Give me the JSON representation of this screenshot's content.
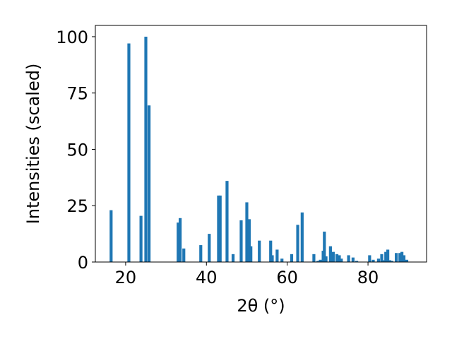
{
  "chart_data": {
    "type": "bar",
    "xlabel": "2θ (°)",
    "ylabel": "Intensities (scaled)",
    "xlim": [
      12.5,
      94.5
    ],
    "ylim": [
      0,
      105
    ],
    "grid": false,
    "bar_color": "#1f77b4",
    "x_ticks": [
      "20",
      "40",
      "60",
      "80"
    ],
    "y_ticks": [
      "0",
      "25",
      "50",
      "75",
      "100"
    ],
    "x": [
      16.4,
      20.8,
      23.8,
      25.0,
      25.8,
      33.0,
      33.5,
      34.4,
      38.6,
      40.7,
      43.0,
      43.4,
      45.1,
      46.6,
      48.6,
      50.0,
      50.6,
      51.0,
      53.1,
      55.9,
      56.3,
      57.5,
      58.7,
      61.1,
      62.6,
      63.7,
      66.6,
      67.6,
      68.2,
      68.9,
      69.2,
      69.6,
      70.7,
      71.4,
      72.3,
      72.9,
      73.4,
      75.2,
      76.3,
      77.2,
      80.4,
      81.3,
      82.6,
      83.4,
      83.8,
      84.4,
      84.9,
      85.4,
      85.9,
      87.0,
      87.9,
      88.4,
      88.9,
      89.6
    ],
    "values": [
      23,
      97,
      20.5,
      100,
      69.5,
      17.5,
      19.5,
      6,
      7.5,
      12.5,
      29.5,
      29.5,
      36,
      3.5,
      18.5,
      26.5,
      19,
      7,
      9.5,
      9.5,
      3,
      5.5,
      1.5,
      3.5,
      16.5,
      22,
      3.5,
      0.5,
      1,
      5,
      13.5,
      2.5,
      7,
      4.5,
      3.5,
      3,
      1.5,
      3,
      2,
      0.5,
      3,
      1,
      1.5,
      3.5,
      0.8,
      4.5,
      5.5,
      0.8,
      0.5,
      4,
      4,
      4.5,
      3,
      1
    ]
  }
}
